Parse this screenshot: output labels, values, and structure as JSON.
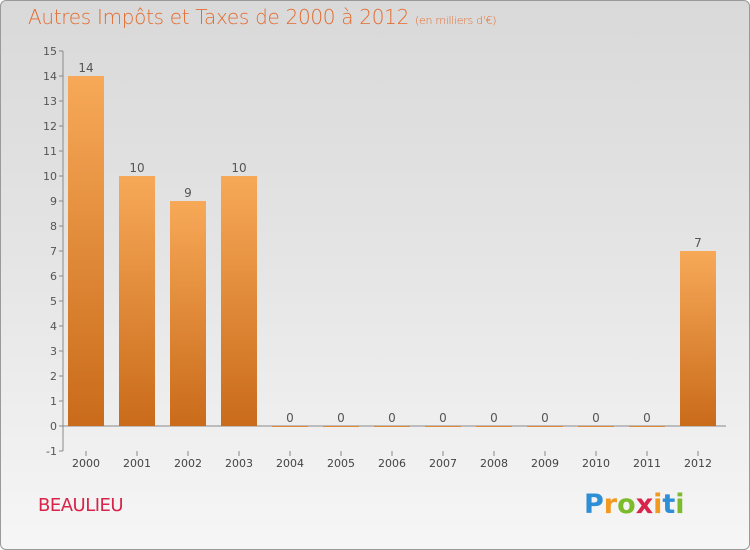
{
  "title": "Autres Impôts et Taxes de 2000 à 2012",
  "subtitle": "(en milliers d'€)",
  "place": "BEAULIEU",
  "logo": {
    "letters": [
      "P",
      "r",
      "o",
      "x",
      "i",
      "t",
      "i"
    ],
    "colors": [
      "#2f8fd6",
      "#f29a1f",
      "#7cbb2c",
      "#d8234a",
      "#f29a1f",
      "#2f8fd6",
      "#7cbb2c"
    ]
  },
  "colors": {
    "title": "#e46b2e",
    "bar_light": "#f7a958",
    "bar_dark": "#c96b1a",
    "place": "#d8234a"
  },
  "chart_data": {
    "type": "bar",
    "categories": [
      "2000",
      "2001",
      "2002",
      "2003",
      "2004",
      "2005",
      "2006",
      "2007",
      "2008",
      "2009",
      "2010",
      "2011",
      "2012"
    ],
    "values": [
      14,
      10,
      9,
      10,
      0,
      0,
      0,
      0,
      0,
      0,
      0,
      0,
      7
    ],
    "data_labels": [
      "14",
      "10",
      "9",
      "10",
      "0",
      "0",
      "0",
      "0",
      "0",
      "0",
      "0",
      "0",
      "7"
    ],
    "y_ticks": [
      "-1",
      "0",
      "1",
      "2",
      "3",
      "4",
      "5",
      "6",
      "7",
      "8",
      "9",
      "10",
      "11",
      "12",
      "13",
      "14",
      "15"
    ],
    "ylim": [
      -1,
      15
    ],
    "xlabel": "",
    "ylabel": "",
    "grid": false
  }
}
